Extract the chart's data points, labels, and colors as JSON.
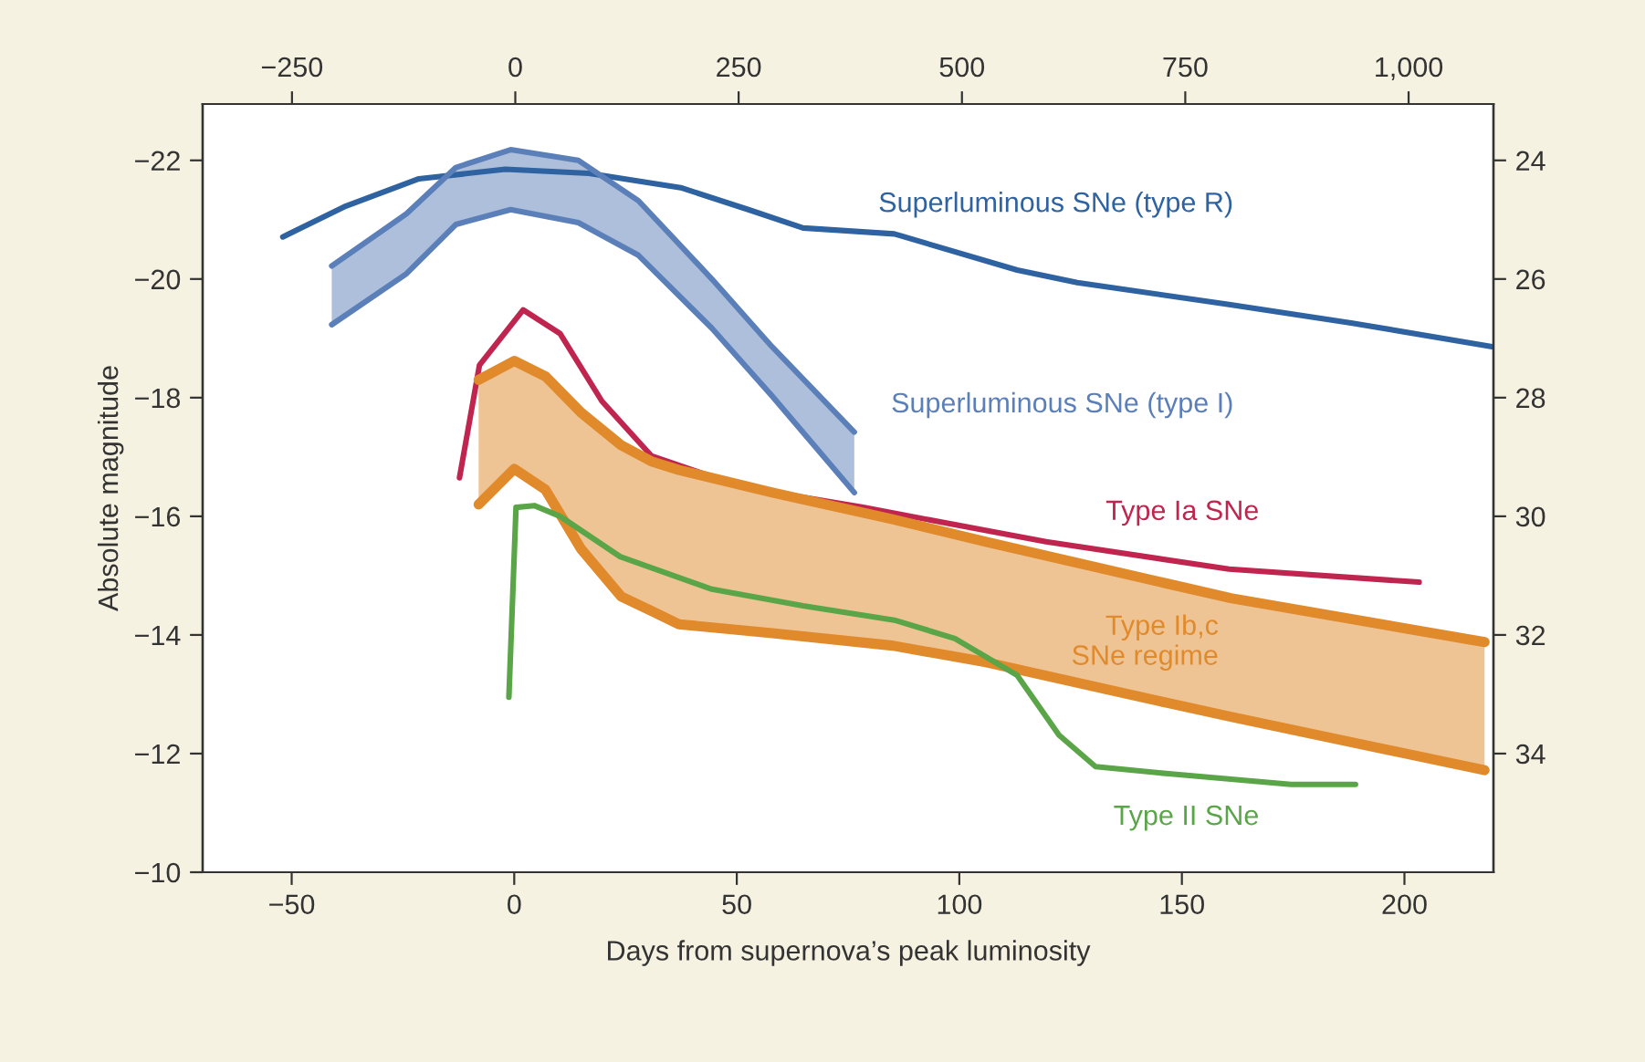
{
  "chart_data": {
    "type": "line",
    "xlabel": "Days from supernova’s peak luminosity",
    "ylabel": "Absolute magnitude",
    "xlim": [
      -70,
      220
    ],
    "xticks": [
      {
        "value": -50,
        "label": "−50"
      },
      0,
      50,
      100,
      150,
      200
    ],
    "x2lim": [
      -350,
      1095
    ],
    "x2ticks": [
      {
        "value": -250,
        "label": "−250"
      },
      0,
      250,
      500,
      750,
      {
        "value": 1000,
        "label": "1,000"
      }
    ],
    "ylim": [
      -10,
      -22.95
    ],
    "yticks": [
      {
        "value": -22,
        "label": "−22"
      },
      {
        "value": -20,
        "label": "−20"
      },
      {
        "value": -18,
        "label": "−18"
      },
      {
        "value": -16,
        "label": "−16"
      },
      {
        "value": -14,
        "label": "−14"
      },
      {
        "value": -12,
        "label": "−12"
      },
      {
        "value": -10,
        "label": "−10"
      }
    ],
    "y2lim": [
      36,
      23.05
    ],
    "y2ticks": [
      24,
      26,
      28,
      30,
      32,
      34
    ],
    "grid": false,
    "legend": false,
    "series": [
      {
        "name": "Superluminous SNe (type R)",
        "color": "#2f62a0",
        "x": [
          -52,
          -37.8,
          -21.4,
          -2,
          16.8,
          37.4,
          52.6,
          64.9,
          85.4,
          113,
          126.5,
          160.6,
          188,
          219.7
        ],
        "values": [
          -20.71,
          -21.23,
          -21.69,
          -21.85,
          -21.78,
          -21.54,
          -21.17,
          -20.86,
          -20.76,
          -20.15,
          -19.94,
          -19.57,
          -19.26,
          -18.86
        ]
      },
      {
        "color": "#5b7fb8",
        "x": [
          -41,
          -24.2,
          -13.1,
          -0.8,
          14.4,
          27.9,
          44.4,
          57.9,
          76.4
        ],
        "values": [
          -19.23,
          -20.09,
          -20.92,
          -21.17,
          -20.95,
          -20.4,
          -19.17,
          -18.03,
          -16.4
        ]
      },
      {
        "name": "Superluminous SNe (type I)",
        "color": "#5b7fb8",
        "x": [
          -41,
          -24.2,
          -13.1,
          -0.8,
          14.4,
          27.9,
          44.4,
          57.9,
          76.4
        ],
        "values": [
          -20.22,
          -21.1,
          -21.88,
          -22.18,
          -22.0,
          -21.32,
          -20.0,
          -18.86,
          -17.42
        ],
        "upper": [
          -20.22,
          -21.1,
          -21.88,
          -22.18,
          -22.0,
          -21.32,
          -20.0,
          -18.86,
          -17.42
        ],
        "lower": [
          -19.23,
          -20.09,
          -20.92,
          -21.17,
          -20.95,
          -20.4,
          -19.17,
          -18.03,
          -16.4
        ]
      },
      {
        "name": "Type Ia SNe",
        "color": "#c0254f",
        "x": [
          -12.3,
          -7.8,
          2,
          10.3,
          19.7,
          30.8,
          51.3,
          78.4,
          119.5,
          160.6,
          203.3
        ],
        "values": [
          -16.65,
          -18.55,
          -19.48,
          -19.08,
          -17.94,
          -17.02,
          -16.49,
          -16.15,
          -15.57,
          -15.11,
          -14.89
        ]
      },
      {
        "color": "#e08a2c",
        "x": [
          -8,
          0,
          7,
          15,
          24,
          31,
          37,
          58,
          85,
          106,
          147,
          161,
          218
        ],
        "values": [
          -16.2,
          -16.8,
          -16.45,
          -15.45,
          -14.65,
          -14.4,
          -14.18,
          -14.03,
          -13.82,
          -13.54,
          -12.85,
          -12.62,
          -11.72
        ]
      },
      {
        "name": "Type Ib,c\nSNe regime",
        "color": "#e08a2c",
        "x": [
          -8,
          0,
          7,
          15,
          24,
          31,
          37,
          58,
          85,
          106,
          147,
          161,
          218
        ],
        "values": [
          -18.3,
          -18.62,
          -18.36,
          -17.75,
          -17.2,
          -16.92,
          -16.78,
          -16.4,
          -15.95,
          -15.57,
          -14.86,
          -14.62,
          -13.88
        ],
        "upper": [
          -18.3,
          -18.62,
          -18.36,
          -17.75,
          -17.2,
          -16.92,
          -16.78,
          -16.4,
          -15.95,
          -15.57,
          -14.86,
          -14.62,
          -13.88
        ],
        "lower": [
          -16.2,
          -16.8,
          -16.45,
          -15.45,
          -14.65,
          -14.4,
          -14.18,
          -14.03,
          -13.82,
          -13.54,
          -12.85,
          -12.62,
          -11.72
        ]
      },
      {
        "name": "Type II SNe",
        "color": "#5aa548",
        "x": [
          -1.2,
          0.4,
          4.5,
          10.3,
          23.8,
          44.4,
          64.9,
          85.4,
          99,
          113,
          122.4,
          130.6,
          147,
          174.5,
          189
        ],
        "values": [
          -12.95,
          -16.15,
          -16.18,
          -16.0,
          -15.32,
          -14.77,
          -14.49,
          -14.25,
          -13.94,
          -13.32,
          -12.31,
          -11.78,
          -11.66,
          -11.48,
          -11.48
        ]
      }
    ]
  }
}
